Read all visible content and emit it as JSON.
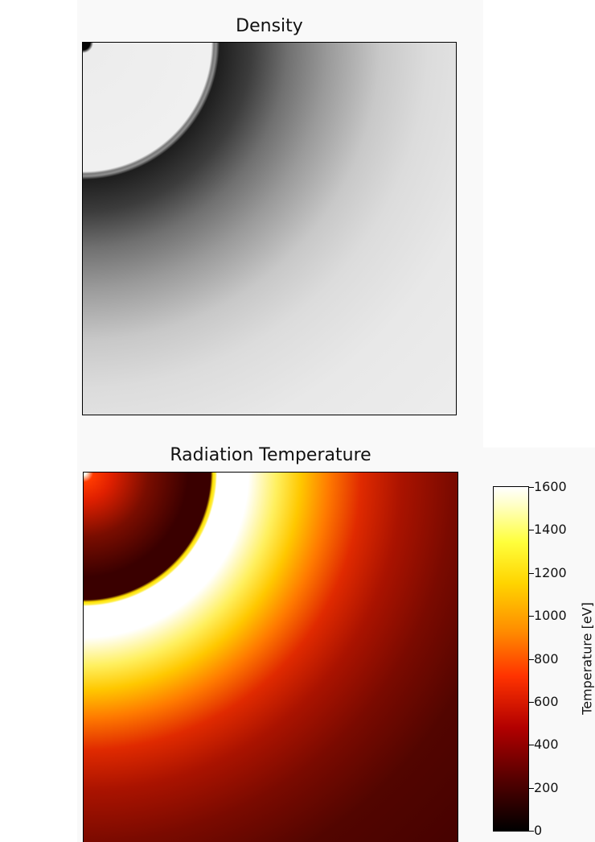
{
  "chart_data": [
    {
      "type": "heatmap",
      "title": "Density",
      "colormap": "gray",
      "xlabel": "",
      "ylabel": ""
    },
    {
      "type": "heatmap",
      "title": "Radiation Temperature",
      "colormap": "hot",
      "xlabel": "",
      "ylabel": "",
      "colorbar": {
        "label": "Temperature [eV]",
        "range": [
          0,
          1600
        ],
        "ticks": [
          "0",
          "200",
          "400",
          "600",
          "800",
          "1000",
          "1200",
          "1400",
          "1600"
        ]
      }
    }
  ]
}
